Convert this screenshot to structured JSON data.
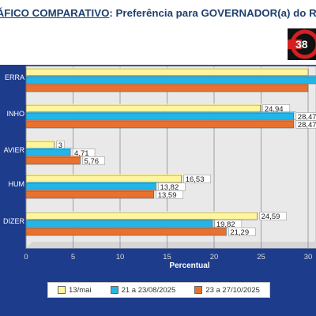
{
  "header": {
    "title_part1": "RÁFICO COMPARATIVO",
    "title_part2": ": Preferência para GOVERNADOR(a) do RN"
  },
  "logo": {
    "text": "38",
    "colors": {
      "ring": "#d42020",
      "bg": "#111111",
      "text": "#ffffff"
    }
  },
  "colors": {
    "chart_bg": "#1e3c8c",
    "plot_bg": "#e9e9e9",
    "series": [
      "#fff59d",
      "#23b5e8",
      "#e8712f"
    ]
  },
  "chart_data": {
    "type": "bar",
    "orientation": "horizontal",
    "categories": [
      "ERRA",
      "INHO",
      "AVIER",
      "HUM",
      "DIZER"
    ],
    "series": [
      {
        "name": "13/mai",
        "values": [
          30,
          24.94,
          3,
          16.53,
          24.59
        ],
        "labels": [
          "",
          "24,94",
          "3",
          "16,53",
          "24,59"
        ]
      },
      {
        "name": "21 a 23/08/2025",
        "values": [
          31,
          28.47,
          4.71,
          13.82,
          19.82
        ],
        "labels": [
          "",
          "28,47",
          "4,71",
          "13,82",
          "19,82"
        ]
      },
      {
        "name": "23 a 27/10/2025",
        "values": [
          30,
          28.47,
          5.76,
          13.59,
          21.29
        ],
        "labels": [
          "",
          "28,47",
          "5,76",
          "13,59",
          "21,29"
        ]
      }
    ],
    "xlabel": "Percentual",
    "ylabel": "",
    "xlim": [
      0,
      30
    ],
    "xticks": [
      0,
      5,
      10,
      15,
      20,
      25,
      30
    ],
    "xticklabels": [
      "0",
      "5",
      "10",
      "15",
      "20",
      "25",
      "30"
    ],
    "grid": true,
    "legend_position": "bottom"
  }
}
